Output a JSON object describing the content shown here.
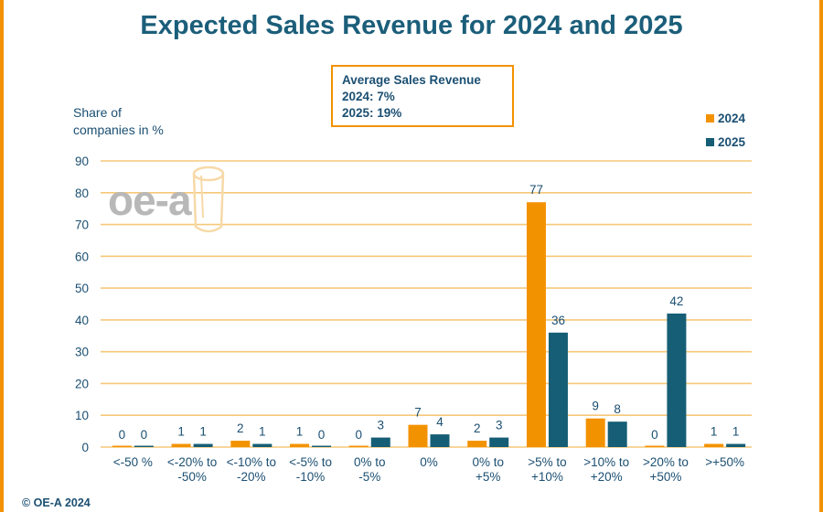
{
  "title": "Expected Sales Revenue for 2024 and 2025",
  "info_box": {
    "heading": "Average Sales Revenue",
    "line1": "2024: 7%",
    "line2": "2025: 19%"
  },
  "footer": "© OE-A 2024",
  "logo_text": "oe-a",
  "colors": {
    "series_2024": "#F39200",
    "series_2025": "#155E75",
    "grid": "#F6C87A",
    "frame": "#F39200",
    "text": "#1B4F72"
  },
  "chart_data": {
    "type": "bar",
    "ylabel_lines": [
      "Share of",
      "companies in %"
    ],
    "ylim": [
      0,
      90
    ],
    "yticks": [
      0,
      10,
      20,
      30,
      40,
      50,
      60,
      70,
      80,
      90
    ],
    "grid": true,
    "legend_position": "top-right",
    "categories": [
      [
        "<-50 %"
      ],
      [
        "<-20% to",
        "-50%"
      ],
      [
        "<-10% to",
        "-20%"
      ],
      [
        "<-5% to",
        "-10%"
      ],
      [
        "0% to",
        "-5%"
      ],
      [
        "0%"
      ],
      [
        "0% to",
        "+5%"
      ],
      [
        ">5% to",
        "+10%"
      ],
      [
        ">10% to",
        "+20%"
      ],
      [
        ">20% to",
        "+50%"
      ],
      [
        ">+50%"
      ]
    ],
    "series": [
      {
        "name": "2024",
        "values": [
          0,
          1,
          2,
          1,
          0,
          7,
          2,
          77,
          9,
          0,
          1
        ]
      },
      {
        "name": "2025",
        "values": [
          0,
          1,
          1,
          0,
          3,
          4,
          3,
          36,
          8,
          42,
          1
        ]
      }
    ]
  }
}
